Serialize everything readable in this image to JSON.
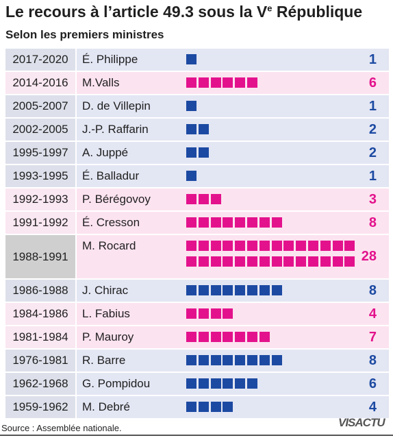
{
  "title_main": "Le recours à l’article 49.3 sous la V",
  "title_sup": "e",
  "title_end": " République",
  "subtitle": "Selon les premiers ministres",
  "source": "Source : Assemblée nationale.",
  "logo_text": "VISACTU",
  "colors": {
    "blue": "#1c4aa2",
    "magenta": "#e3128c",
    "blue_row": "#e3e6f3",
    "pink_row": "#fce3f0",
    "period_blue": "#dde0ea",
    "period_pink": "#f9e7f1",
    "period_grey": "#cfcfcf"
  },
  "chart_data": {
    "type": "bar",
    "title": "Le recours à l’article 49.3 sous la Ve République",
    "subtitle": "Selon les premiers ministres",
    "categories": [
      "É. Philippe",
      "M.Valls",
      "D. de Villepin",
      "J.-P. Raffarin",
      "A. Juppé",
      "É. Balladur",
      "P. Bérégovoy",
      "É. Cresson",
      "M. Rocard",
      "J. Chirac",
      "L. Fabius",
      "P. Mauroy",
      "R. Barre",
      "G. Pompidou",
      "M. Debré"
    ],
    "periods": [
      "2017-2020",
      "2014-2016",
      "2005-2007",
      "2002-2005",
      "1995-1997",
      "1993-1995",
      "1992-1993",
      "1991-1992",
      "1988-1991",
      "1986-1988",
      "1984-1986",
      "1981-1984",
      "1976-1981",
      "1962-1968",
      "1959-1962"
    ],
    "values": [
      1,
      6,
      1,
      2,
      2,
      1,
      3,
      8,
      28,
      8,
      4,
      7,
      8,
      6,
      4
    ],
    "value_labels": [
      "1",
      "6",
      "1",
      "2",
      "2",
      "1",
      "3",
      "8",
      "28",
      "8",
      "4",
      "7",
      "8",
      "6",
      "4"
    ],
    "series_colors": [
      "blue",
      "magenta",
      "blue",
      "blue",
      "blue",
      "blue",
      "magenta",
      "magenta",
      "magenta",
      "blue",
      "magenta",
      "magenta",
      "blue",
      "blue",
      "blue"
    ]
  }
}
